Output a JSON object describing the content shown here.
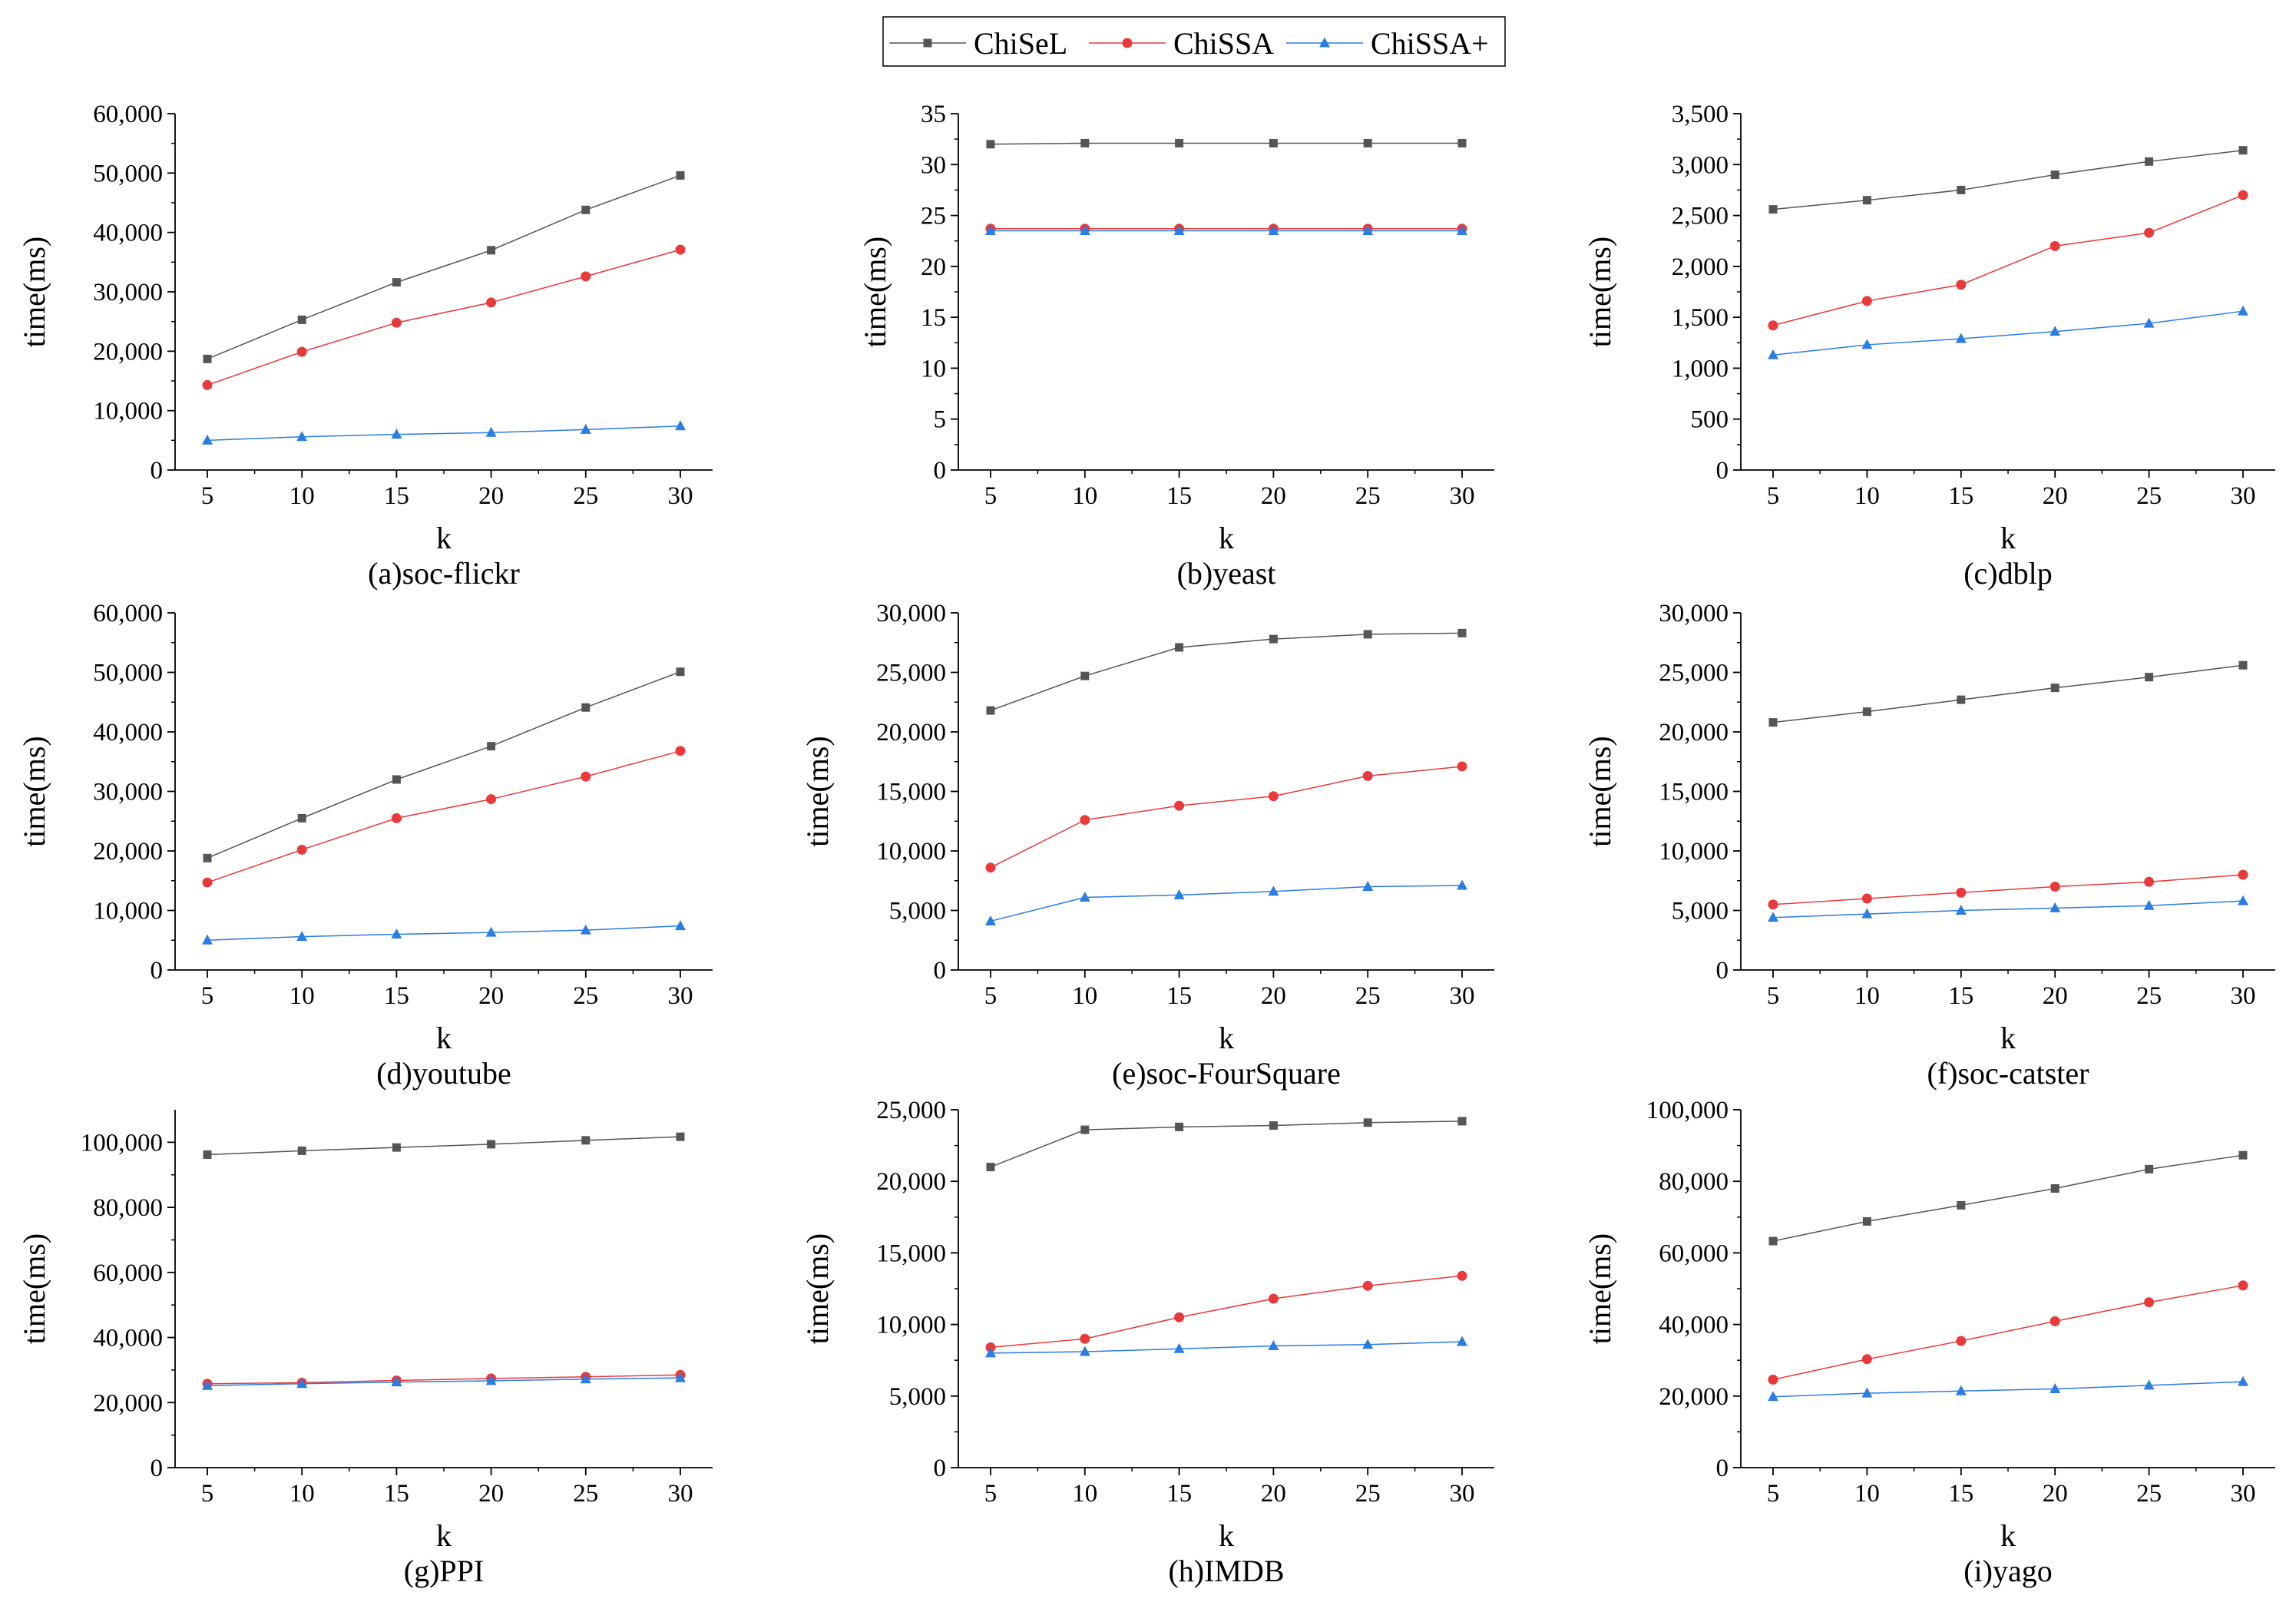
{
  "legend": [
    {
      "name": "ChiSeL",
      "color": "#555555",
      "marker": "square"
    },
    {
      "name": "ChiSSA",
      "color": "#e83a3a",
      "marker": "circle"
    },
    {
      "name": "ChiSSA+",
      "color": "#2a7de1",
      "marker": "triangle"
    }
  ],
  "chart_data": [
    {
      "type": "line",
      "caption": "(a)soc-flickr",
      "xlabel": "k",
      "ylabel": "time(ms)",
      "x": [
        5,
        10,
        15,
        20,
        25,
        30
      ],
      "ylim": [
        0,
        60000
      ],
      "yticks": [
        0,
        10000,
        20000,
        30000,
        40000,
        50000,
        60000
      ],
      "ytick_labels": [
        "0",
        "10,000",
        "20,000",
        "30,000",
        "40,000",
        "50,000",
        "60,000"
      ],
      "series": [
        {
          "name": "ChiSeL",
          "values": [
            18700,
            25300,
            31600,
            37000,
            43800,
            49600
          ]
        },
        {
          "name": "ChiSSA",
          "values": [
            14300,
            19900,
            24800,
            28200,
            32600,
            37100
          ]
        },
        {
          "name": "ChiSSA+",
          "values": [
            5000,
            5600,
            6000,
            6300,
            6800,
            7400
          ]
        }
      ]
    },
    {
      "type": "line",
      "caption": "(b)yeast",
      "xlabel": "k",
      "ylabel": "time(ms)",
      "x": [
        5,
        10,
        15,
        20,
        25,
        30
      ],
      "ylim": [
        0,
        35
      ],
      "yticks": [
        0,
        5,
        10,
        15,
        20,
        25,
        30,
        35
      ],
      "ytick_labels": [
        "0",
        "5",
        "10",
        "15",
        "20",
        "25",
        "30",
        "35"
      ],
      "series": [
        {
          "name": "ChiSeL",
          "values": [
            32.0,
            32.1,
            32.1,
            32.1,
            32.1,
            32.1
          ]
        },
        {
          "name": "ChiSSA",
          "values": [
            23.7,
            23.7,
            23.7,
            23.7,
            23.7,
            23.7
          ]
        },
        {
          "name": "ChiSSA+",
          "values": [
            23.5,
            23.5,
            23.5,
            23.5,
            23.5,
            23.5
          ]
        }
      ]
    },
    {
      "type": "line",
      "caption": "(c)dblp",
      "xlabel": "k",
      "ylabel": "time(ms)",
      "x": [
        5,
        10,
        15,
        20,
        25,
        30
      ],
      "ylim": [
        0,
        3500
      ],
      "yticks": [
        0,
        500,
        1000,
        1500,
        2000,
        2500,
        3000,
        3500
      ],
      "ytick_labels": [
        "0",
        "500",
        "1,000",
        "1,500",
        "2,000",
        "2,500",
        "3,000",
        "3,500"
      ],
      "series": [
        {
          "name": "ChiSeL",
          "values": [
            2560,
            2650,
            2750,
            2900,
            3030,
            3140
          ]
        },
        {
          "name": "ChiSSA",
          "values": [
            1420,
            1660,
            1820,
            2200,
            2330,
            2700
          ]
        },
        {
          "name": "ChiSSA+",
          "values": [
            1130,
            1230,
            1290,
            1360,
            1440,
            1560
          ]
        }
      ]
    },
    {
      "type": "line",
      "caption": "(d)youtube",
      "xlabel": "k",
      "ylabel": "time(ms)",
      "x": [
        5,
        10,
        15,
        20,
        25,
        30
      ],
      "ylim": [
        0,
        60000
      ],
      "yticks": [
        0,
        10000,
        20000,
        30000,
        40000,
        50000,
        60000
      ],
      "ytick_labels": [
        "0",
        "10,000",
        "20,000",
        "30,000",
        "40,000",
        "50,000",
        "60,000"
      ],
      "series": [
        {
          "name": "ChiSeL",
          "values": [
            18800,
            25500,
            32000,
            37600,
            44100,
            50100
          ]
        },
        {
          "name": "ChiSSA",
          "values": [
            14700,
            20200,
            25500,
            28700,
            32500,
            36800
          ]
        },
        {
          "name": "ChiSSA+",
          "values": [
            5000,
            5600,
            6000,
            6300,
            6700,
            7400
          ]
        }
      ]
    },
    {
      "type": "line",
      "caption": "(e)soc-FourSquare",
      "xlabel": "k",
      "ylabel": "time(ms)",
      "x": [
        5,
        10,
        15,
        20,
        25,
        30
      ],
      "ylim": [
        0,
        30000
      ],
      "yticks": [
        0,
        5000,
        10000,
        15000,
        20000,
        25000,
        30000
      ],
      "ytick_labels": [
        "0",
        "5,000",
        "10,000",
        "15,000",
        "20,000",
        "25,000",
        "30,000"
      ],
      "series": [
        {
          "name": "ChiSeL",
          "values": [
            21800,
            24700,
            27100,
            27800,
            28200,
            28300
          ]
        },
        {
          "name": "ChiSSA",
          "values": [
            8600,
            12600,
            13800,
            14600,
            16300,
            17100
          ]
        },
        {
          "name": "ChiSSA+",
          "values": [
            4100,
            6100,
            6300,
            6600,
            7000,
            7100
          ]
        }
      ]
    },
    {
      "type": "line",
      "caption": "(f)soc-catster",
      "xlabel": "k",
      "ylabel": "time(ms)",
      "x": [
        5,
        10,
        15,
        20,
        25,
        30
      ],
      "ylim": [
        0,
        30000
      ],
      "yticks": [
        0,
        5000,
        10000,
        15000,
        20000,
        25000,
        30000
      ],
      "ytick_labels": [
        "0",
        "5,000",
        "10,000",
        "15,000",
        "20,000",
        "25,000",
        "30,000"
      ],
      "series": [
        {
          "name": "ChiSeL",
          "values": [
            20800,
            21700,
            22700,
            23700,
            24600,
            25600
          ]
        },
        {
          "name": "ChiSSA",
          "values": [
            5500,
            6000,
            6500,
            7000,
            7400,
            8000
          ]
        },
        {
          "name": "ChiSSA+",
          "values": [
            4400,
            4700,
            5000,
            5200,
            5400,
            5800
          ]
        }
      ]
    },
    {
      "type": "line",
      "caption": "(g)PPI",
      "xlabel": "k",
      "ylabel": "time(ms)",
      "x": [
        5,
        10,
        15,
        20,
        25,
        30
      ],
      "ylim": [
        0,
        110000
      ],
      "yticks": [
        0,
        20000,
        40000,
        60000,
        80000,
        100000
      ],
      "ytick_labels": [
        "0",
        "20,000",
        "40,000",
        "60,000",
        "80,000",
        "100,000"
      ],
      "series": [
        {
          "name": "ChiSeL",
          "values": [
            96200,
            97400,
            98400,
            99400,
            100600,
            101700
          ]
        },
        {
          "name": "ChiSSA",
          "values": [
            25800,
            26100,
            26800,
            27400,
            27900,
            28500
          ]
        },
        {
          "name": "ChiSSA+",
          "values": [
            25200,
            25800,
            26300,
            26700,
            27200,
            27600
          ]
        }
      ]
    },
    {
      "type": "line",
      "caption": "(h)IMDB",
      "xlabel": "k",
      "ylabel": "time(ms)",
      "x": [
        5,
        10,
        15,
        20,
        25,
        30
      ],
      "ylim": [
        0,
        25000
      ],
      "yticks": [
        0,
        5000,
        10000,
        15000,
        20000,
        25000
      ],
      "ytick_labels": [
        "0",
        "5,000",
        "10,000",
        "15,000",
        "20,000",
        "25,000"
      ],
      "series": [
        {
          "name": "ChiSeL",
          "values": [
            21000,
            23600,
            23800,
            23900,
            24100,
            24200
          ]
        },
        {
          "name": "ChiSSA",
          "values": [
            8400,
            9000,
            10500,
            11800,
            12700,
            13400
          ]
        },
        {
          "name": "ChiSSA+",
          "values": [
            8000,
            8100,
            8300,
            8500,
            8600,
            8800
          ]
        }
      ]
    },
    {
      "type": "line",
      "caption": "(i)yago",
      "xlabel": "k",
      "ylabel": "time(ms)",
      "x": [
        5,
        10,
        15,
        20,
        25,
        30
      ],
      "ylim": [
        0,
        100000
      ],
      "yticks": [
        0,
        20000,
        40000,
        60000,
        80000,
        100000
      ],
      "ytick_labels": [
        "0",
        "20,000",
        "40,000",
        "60,000",
        "80,000",
        "100,000"
      ],
      "series": [
        {
          "name": "ChiSeL",
          "values": [
            63300,
            68800,
            73300,
            78000,
            83400,
            87300
          ]
        },
        {
          "name": "ChiSSA",
          "values": [
            24600,
            30300,
            35400,
            40900,
            46200,
            50900
          ]
        },
        {
          "name": "ChiSSA+",
          "values": [
            19800,
            20800,
            21400,
            22000,
            23000,
            24000
          ]
        }
      ]
    }
  ]
}
